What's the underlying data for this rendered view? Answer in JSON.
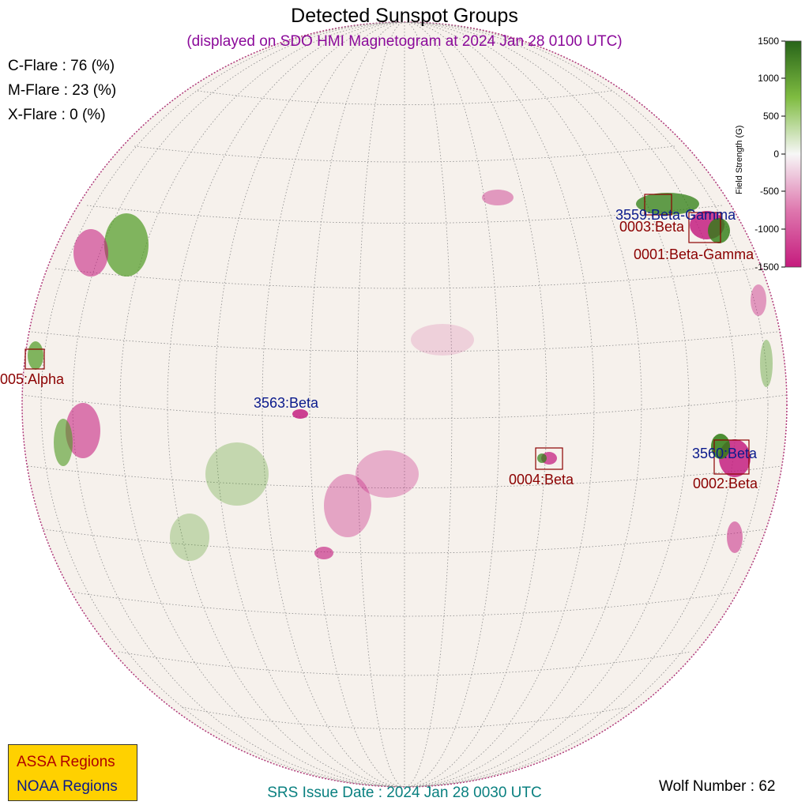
{
  "title": "Detected Sunspot Groups",
  "subtitle": "(displayed on SDO HMI Magnetogram at 2024 Jan 28 0100 UTC)",
  "flares": {
    "c": "C-Flare : 76 (%)",
    "m": "M-Flare : 23 (%)",
    "x": "X-Flare :  0 (%)"
  },
  "regions": {
    "r3559": "3559:Beta-Gamma",
    "r0003": "0003:Beta",
    "r0001": "0001:Beta-Gamma",
    "r0005": "005:Alpha",
    "r3563": "3563:Beta",
    "r0004": "0004:Beta",
    "r3560": "3560:Beta",
    "r0002": "0002:Beta"
  },
  "legend": {
    "assa": "ASSA Regions",
    "noaa": "NOAA Regions"
  },
  "srs": "SRS Issue Date : 2024 Jan 28 0030 UTC",
  "wolf": "Wolf Number : 62",
  "colorbar": {
    "title": "Field Strength (G)",
    "ticks": [
      "1500",
      "1000",
      "500",
      "0",
      "-500",
      "-1000",
      "-1500"
    ],
    "positive_color": "#2e7d13",
    "negative_color": "#c2137a"
  },
  "colors": {
    "assa": "#8b0000",
    "noaa": "#0a1a8c",
    "legend_bg": "#ffd100"
  }
}
